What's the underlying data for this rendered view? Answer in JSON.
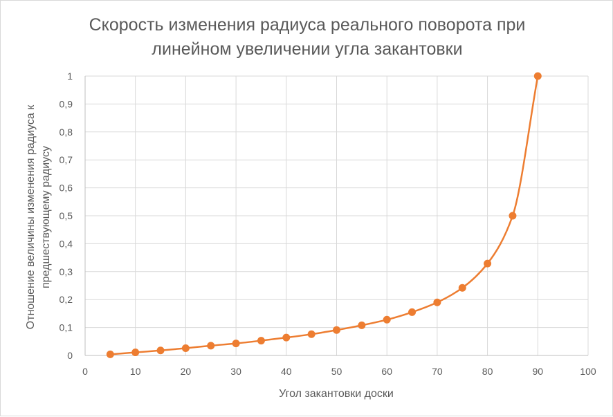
{
  "chart_data": {
    "type": "scatter",
    "title_lines": [
      "Скорость изменения радиуса реального поворота при",
      "линейном увеличении угла закантовки"
    ],
    "xlabel": "Угол закантовки доски",
    "ylabel_lines": [
      "Отношение величины изменения радиуса к",
      "предшествующему радиусу"
    ],
    "xlim": [
      0,
      100
    ],
    "ylim": [
      0,
      1
    ],
    "x_ticks": [
      "0",
      "10",
      "20",
      "30",
      "40",
      "50",
      "60",
      "70",
      "80",
      "90",
      "100"
    ],
    "y_ticks": [
      "0",
      "0,1",
      "0,2",
      "0,3",
      "0,4",
      "0,5",
      "0,6",
      "0,7",
      "0,8",
      "0,9",
      "1"
    ],
    "grid": "vertical and horizontal",
    "legend": "none",
    "smooth_line": true,
    "series": [
      {
        "color": "#ED7D31",
        "x": [
          5,
          10,
          15,
          20,
          25,
          30,
          35,
          40,
          45,
          50,
          55,
          60,
          65,
          70,
          75,
          80,
          85,
          90
        ],
        "y": [
          0.004,
          0.011,
          0.018,
          0.026,
          0.035,
          0.043,
          0.053,
          0.064,
          0.076,
          0.091,
          0.108,
          0.128,
          0.155,
          0.19,
          0.242,
          0.329,
          0.5,
          1.0
        ]
      }
    ]
  }
}
